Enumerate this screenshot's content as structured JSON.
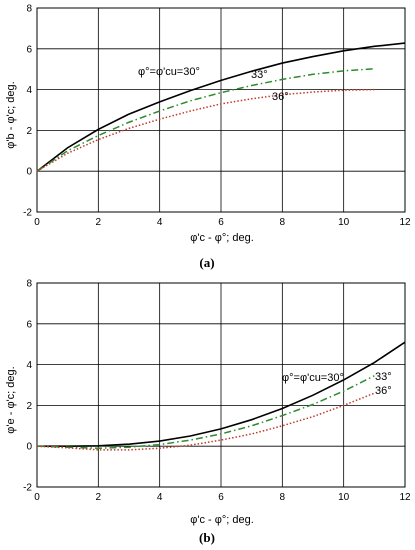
{
  "chart_data": [
    {
      "type": "line",
      "panel_label": "(a)",
      "xlabel": "φ'c - φ°; deg.",
      "ylabel": "φ'b - φ'c; deg.",
      "xlim": [
        0,
        12
      ],
      "ylim": [
        -2,
        8
      ],
      "xticks": [
        "0",
        "2",
        "4",
        "6",
        "8",
        "10",
        "12"
      ],
      "yticks": [
        "-2",
        "0",
        "2",
        "4",
        "6",
        "8"
      ],
      "grid": true,
      "series": [
        {
          "name": "φ°=φ'cu=30°",
          "color": "#000000",
          "dash": "solid",
          "x": [
            0,
            1,
            2,
            3,
            4,
            5,
            6,
            7,
            8,
            9,
            10,
            11,
            12
          ],
          "y": [
            0,
            1.15,
            2.05,
            2.8,
            3.4,
            3.95,
            4.45,
            4.9,
            5.3,
            5.62,
            5.9,
            6.12,
            6.28
          ]
        },
        {
          "name": "33°",
          "color": "#2e8b2e",
          "dash": "dashdot",
          "x": [
            0,
            1,
            2,
            3,
            4,
            5,
            6,
            7,
            8,
            9,
            10,
            11
          ],
          "y": [
            0,
            1.0,
            1.75,
            2.4,
            2.95,
            3.45,
            3.85,
            4.2,
            4.5,
            4.75,
            4.92,
            5.02
          ]
        },
        {
          "name": "36°",
          "color": "#c0392b",
          "dash": "dotted",
          "x": [
            0,
            1,
            2,
            3,
            4,
            5,
            6,
            7,
            8,
            9,
            10,
            11
          ],
          "y": [
            0,
            0.88,
            1.55,
            2.1,
            2.55,
            2.95,
            3.3,
            3.55,
            3.75,
            3.88,
            3.97,
            4.0
          ]
        }
      ],
      "annotations": [
        "φ°=φ'cu=30°",
        "33°",
        "36°"
      ]
    },
    {
      "type": "line",
      "panel_label": "(b)",
      "xlabel": "φ'c - φ°; deg.",
      "ylabel": "φ'e - φ'c; deg.",
      "xlim": [
        0,
        12
      ],
      "ylim": [
        -2,
        8
      ],
      "xticks": [
        "0",
        "2",
        "4",
        "6",
        "8",
        "10",
        "12"
      ],
      "yticks": [
        "-2",
        "0",
        "2",
        "4",
        "6",
        "8"
      ],
      "grid": true,
      "series": [
        {
          "name": "φ°=φ'cu=30°",
          "color": "#000000",
          "dash": "solid",
          "x": [
            0,
            1,
            2,
            3,
            4,
            5,
            6,
            7,
            8,
            9,
            10,
            11,
            12
          ],
          "y": [
            0,
            0.0,
            0.02,
            0.1,
            0.25,
            0.5,
            0.85,
            1.3,
            1.85,
            2.5,
            3.25,
            4.1,
            5.1
          ]
        },
        {
          "name": "33°",
          "color": "#2e8b2e",
          "dash": "dashdot",
          "x": [
            0,
            1,
            2,
            3,
            4,
            5,
            6,
            7,
            8,
            9,
            10,
            11
          ],
          "y": [
            0,
            -0.05,
            -0.1,
            -0.05,
            0.08,
            0.3,
            0.6,
            1.0,
            1.5,
            2.05,
            2.7,
            3.45
          ]
        },
        {
          "name": "36°",
          "color": "#c0392b",
          "dash": "dotted",
          "x": [
            0,
            1,
            2,
            3,
            4,
            5,
            6,
            7,
            8,
            9,
            10,
            11
          ],
          "y": [
            0,
            -0.08,
            -0.18,
            -0.18,
            -0.1,
            0.05,
            0.3,
            0.6,
            1.0,
            1.45,
            2.0,
            2.6
          ]
        }
      ],
      "annotations": [
        "φ°=φ'cu=30°",
        "33°",
        "36°"
      ]
    }
  ]
}
